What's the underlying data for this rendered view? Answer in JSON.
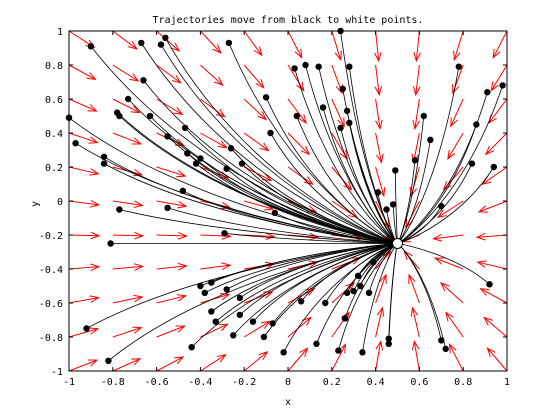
{
  "chart_data": {
    "type": "vector-field",
    "title": "Trajectories move from black to white points.",
    "xlabel": "x",
    "ylabel": "y",
    "xlim": [
      -1,
      1
    ],
    "ylim": [
      -1,
      1
    ],
    "xticks": [
      -1,
      -0.8,
      -0.6,
      -0.4,
      -0.2,
      0,
      0.2,
      0.4,
      0.6,
      0.8,
      1
    ],
    "yticks": [
      -1,
      -0.8,
      -0.6,
      -0.4,
      -0.2,
      0,
      0.2,
      0.4,
      0.6,
      0.8,
      1
    ],
    "grid": false,
    "arrow_color": "#ff0000",
    "trajectory_color": "#000000",
    "field": {
      "description": "Arrows of the vector field sampled on a regular grid",
      "x_samples": [
        -1,
        -0.8,
        -0.6,
        -0.4,
        -0.2,
        0,
        0.2,
        0.4,
        0.6,
        0.8,
        1
      ],
      "y_samples": [
        -1,
        -0.8,
        -0.6,
        -0.4,
        -0.2,
        0,
        0.2,
        0.4,
        0.6,
        0.8,
        1
      ],
      "sink": [
        0.5,
        -0.25
      ]
    },
    "end_point": {
      "x": 0.5,
      "y": -0.25
    },
    "start_points": [
      [
        -1.0,
        0.49
      ],
      [
        -0.97,
        0.34
      ],
      [
        -0.9,
        0.91
      ],
      [
        -0.92,
        -0.75
      ],
      [
        -0.84,
        0.26
      ],
      [
        -0.84,
        0.22
      ],
      [
        -0.81,
        -0.25
      ],
      [
        -0.82,
        -0.94
      ],
      [
        -0.77,
        -0.05
      ],
      [
        -0.78,
        0.52
      ],
      [
        -0.77,
        0.5
      ],
      [
        -0.73,
        0.6
      ],
      [
        -0.67,
        0.93
      ],
      [
        -0.66,
        0.71
      ],
      [
        -0.63,
        0.5
      ],
      [
        -0.58,
        0.92
      ],
      [
        -0.56,
        0.96
      ],
      [
        -0.55,
        0.38
      ],
      [
        -0.55,
        -0.04
      ],
      [
        -0.47,
        0.43
      ],
      [
        -0.46,
        0.28
      ],
      [
        -0.48,
        0.06
      ],
      [
        -0.44,
        -0.86
      ],
      [
        -0.42,
        0.22
      ],
      [
        -0.4,
        -0.5
      ],
      [
        -0.4,
        0.25
      ],
      [
        -0.38,
        -0.54
      ],
      [
        -0.35,
        -0.48
      ],
      [
        -0.35,
        -0.65
      ],
      [
        -0.33,
        -0.71
      ],
      [
        -0.28,
        0.19
      ],
      [
        -0.28,
        -0.52
      ],
      [
        -0.29,
        -0.19
      ],
      [
        -0.27,
        0.93
      ],
      [
        -0.26,
        0.31
      ],
      [
        -0.25,
        -0.79
      ],
      [
        -0.22,
        -0.67
      ],
      [
        -0.22,
        -0.57
      ],
      [
        -0.21,
        0.22
      ],
      [
        -0.16,
        -0.71
      ],
      [
        -0.11,
        -0.8
      ],
      [
        -0.1,
        0.61
      ],
      [
        -0.08,
        0.4
      ],
      [
        -0.07,
        -0.72
      ],
      [
        -0.06,
        -0.07
      ],
      [
        -0.02,
        -0.89
      ],
      [
        0.03,
        0.78
      ],
      [
        0.04,
        0.5
      ],
      [
        0.06,
        -0.59
      ],
      [
        0.08,
        0.8
      ],
      [
        0.13,
        -0.84
      ],
      [
        0.14,
        0.79
      ],
      [
        0.16,
        0.55
      ],
      [
        0.17,
        -0.6
      ],
      [
        0.23,
        -0.88
      ],
      [
        0.24,
        1.0
      ],
      [
        0.25,
        0.66
      ],
      [
        0.24,
        0.43
      ],
      [
        0.26,
        -0.69
      ],
      [
        0.27,
        -0.54
      ],
      [
        0.27,
        0.53
      ],
      [
        0.28,
        0.46
      ],
      [
        0.28,
        0.79
      ],
      [
        0.3,
        -0.53
      ],
      [
        0.32,
        -0.44
      ],
      [
        0.33,
        -0.5
      ],
      [
        0.34,
        -0.89
      ],
      [
        0.37,
        -0.54
      ],
      [
        0.39,
        -0.36
      ],
      [
        0.41,
        0.05
      ],
      [
        0.45,
        -0.05
      ],
      [
        0.46,
        -0.81
      ],
      [
        0.46,
        -0.84
      ],
      [
        0.48,
        -0.02
      ],
      [
        0.49,
        0.18
      ],
      [
        0.58,
        0.24
      ],
      [
        0.62,
        0.5
      ],
      [
        0.65,
        0.36
      ],
      [
        0.7,
        -0.82
      ],
      [
        0.7,
        -0.03
      ],
      [
        0.72,
        -0.87
      ],
      [
        0.78,
        0.79
      ],
      [
        0.84,
        0.22
      ],
      [
        0.86,
        0.45
      ],
      [
        0.91,
        0.64
      ],
      [
        0.94,
        0.2
      ],
      [
        0.92,
        -0.49
      ],
      [
        0.98,
        0.68
      ]
    ]
  }
}
